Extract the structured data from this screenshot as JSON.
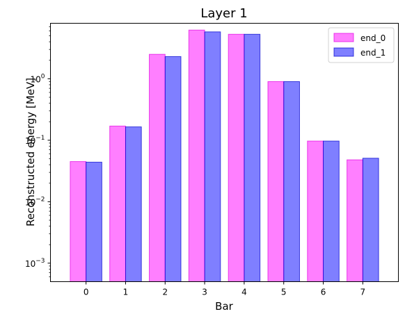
{
  "chart_data": {
    "type": "bar",
    "title": "Layer 1",
    "xlabel": "Bar",
    "ylabel": "Reconstructed energy [MeV]",
    "yscale": "log",
    "ylim": [
      0.0005,
      8
    ],
    "categories": [
      "0",
      "1",
      "2",
      "3",
      "4",
      "5",
      "6",
      "7"
    ],
    "y_ticks": [
      {
        "value": 0.001,
        "base": "10",
        "exp": "−3"
      },
      {
        "value": 0.01,
        "base": "10",
        "exp": "−2"
      },
      {
        "value": 0.1,
        "base": "10",
        "exp": "−1"
      },
      {
        "value": 1,
        "base": "10",
        "exp": "0"
      }
    ],
    "series": [
      {
        "name": "end_0",
        "color": "#ff00ff",
        "edge": "#e000e0",
        "opacity": 0.5,
        "values": [
          0.045,
          0.17,
          2.5,
          6.2,
          5.3,
          0.9,
          0.097,
          0.048
        ]
      },
      {
        "name": "end_1",
        "color": "#0000ff",
        "edge": "#0000cc",
        "opacity": 0.5,
        "values": [
          0.044,
          0.165,
          2.3,
          5.8,
          5.3,
          0.9,
          0.097,
          0.051
        ]
      }
    ],
    "legend_position": "top-right",
    "grid": false
  }
}
